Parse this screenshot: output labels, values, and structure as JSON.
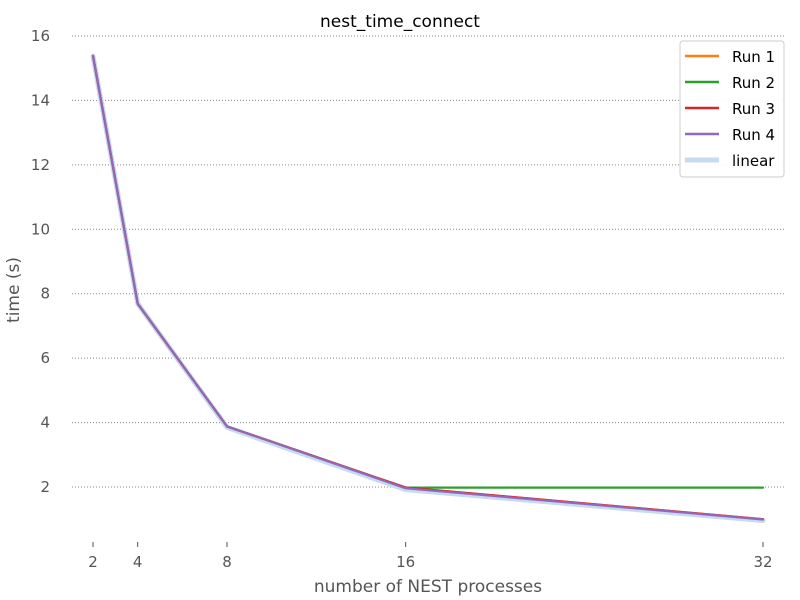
{
  "chart_data": {
    "type": "line",
    "title": "nest_time_connect",
    "xlabel": "number of NEST processes",
    "ylabel": "time (s)",
    "x": [
      2,
      4,
      8,
      16,
      32
    ],
    "xlim": [
      1.5,
      32.5
    ],
    "ylim": [
      0.4,
      16.3
    ],
    "xticks": [
      2,
      4,
      8,
      16,
      32
    ],
    "yticks": [
      2,
      4,
      6,
      8,
      10,
      12,
      14,
      16
    ],
    "grid": "horizontal dotted",
    "legend_position": "top-right",
    "series": [
      {
        "name": "Run 1",
        "color": "#ff7f0e",
        "values": [
          15.38,
          7.69,
          3.88,
          1.98,
          1.0
        ]
      },
      {
        "name": "Run 2",
        "color": "#2ca02c",
        "values": [
          15.38,
          7.69,
          3.88,
          1.98,
          1.98
        ]
      },
      {
        "name": "Run 3",
        "color": "#d62728",
        "values": [
          15.38,
          7.69,
          3.88,
          1.98,
          1.0
        ]
      },
      {
        "name": "Run 4",
        "color": "#9467bd",
        "values": [
          15.38,
          7.69,
          3.88,
          1.96,
          0.99
        ]
      },
      {
        "name": "linear",
        "color": "#c6dbef",
        "values": [
          15.38,
          7.69,
          3.85,
          1.92,
          0.96
        ]
      }
    ]
  }
}
